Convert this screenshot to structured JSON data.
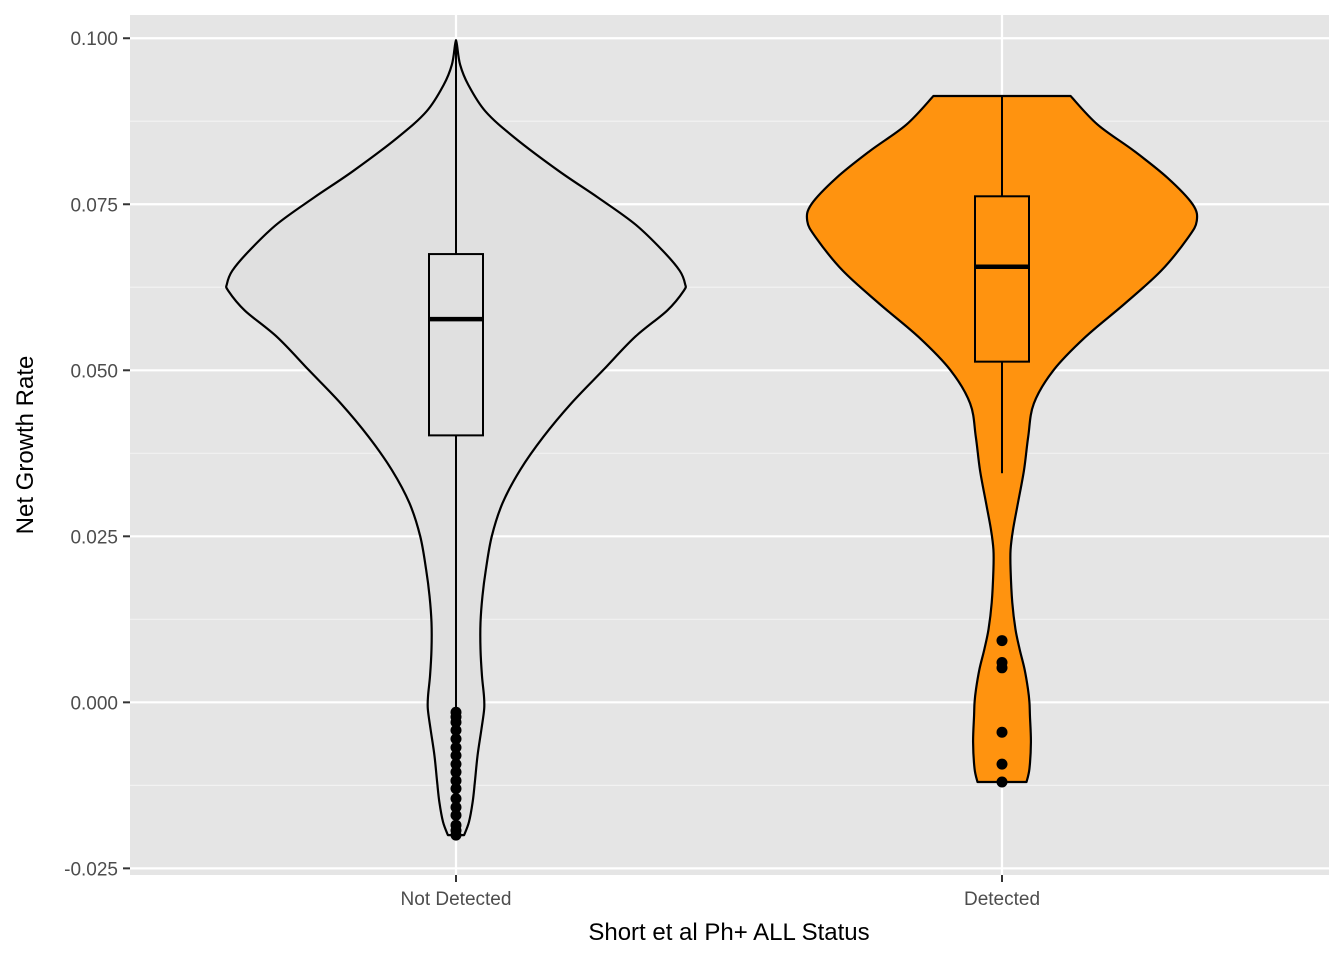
{
  "chart_data": {
    "type": "violin",
    "xlabel": "Short et al Ph+ ALL Status",
    "ylabel": "Net Growth Rate",
    "ylim": [
      -0.026,
      0.1035
    ],
    "y_ticks": [
      -0.025,
      0.0,
      0.025,
      0.05,
      0.075,
      0.1
    ],
    "y_tick_labels": [
      "-0.025",
      "0.000",
      "0.025",
      "0.050",
      "0.075",
      "0.100"
    ],
    "grid": true,
    "categories": [
      "Not Detected",
      "Detected"
    ],
    "series": [
      {
        "category": "Not Detected",
        "fill": "#e0e0e0",
        "density_profile": [
          [
            -0.02,
            0.033
          ],
          [
            -0.018,
            0.053
          ],
          [
            -0.015,
            0.068
          ],
          [
            -0.012,
            0.077
          ],
          [
            -0.008,
            0.088
          ],
          [
            -0.004,
            0.104
          ],
          [
            -0.001,
            0.115
          ],
          [
            0.001,
            0.114
          ],
          [
            0.004,
            0.106
          ],
          [
            0.008,
            0.1
          ],
          [
            0.012,
            0.1
          ],
          [
            0.016,
            0.108
          ],
          [
            0.02,
            0.122
          ],
          [
            0.025,
            0.146
          ],
          [
            0.03,
            0.19
          ],
          [
            0.035,
            0.262
          ],
          [
            0.04,
            0.357
          ],
          [
            0.045,
            0.47
          ],
          [
            0.05,
            0.6
          ],
          [
            0.055,
            0.73
          ],
          [
            0.059,
            0.862
          ],
          [
            0.062,
            0.93
          ],
          [
            0.063,
            0.935
          ],
          [
            0.065,
            0.913
          ],
          [
            0.068,
            0.844
          ],
          [
            0.072,
            0.731
          ],
          [
            0.076,
            0.58
          ],
          [
            0.08,
            0.42
          ],
          [
            0.085,
            0.24
          ],
          [
            0.089,
            0.12
          ],
          [
            0.093,
            0.05
          ],
          [
            0.096,
            0.017
          ],
          [
            0.099,
            0.004
          ],
          [
            0.0997,
            0.0
          ]
        ],
        "box": {
          "min": -0.02,
          "q1": 0.0402,
          "median": 0.0577,
          "q3": 0.0675,
          "max": 0.0997
        },
        "outliers": [
          -0.0015,
          -0.0022,
          -0.003,
          -0.0042,
          -0.0055,
          -0.0068,
          -0.008,
          -0.0093,
          -0.0105,
          -0.0118,
          -0.013,
          -0.0145,
          -0.0158,
          -0.017,
          -0.0185,
          -0.0193,
          -0.02
        ]
      },
      {
        "category": "Detected",
        "fill": "#ff930f",
        "density_profile": [
          [
            -0.012,
            0.1
          ],
          [
            -0.01,
            0.112
          ],
          [
            -0.006,
            0.118
          ],
          [
            -0.002,
            0.114
          ],
          [
            0.0,
            0.112
          ],
          [
            0.002,
            0.106
          ],
          [
            0.005,
            0.092
          ],
          [
            0.008,
            0.072
          ],
          [
            0.011,
            0.055
          ],
          [
            0.015,
            0.042
          ],
          [
            0.02,
            0.035
          ],
          [
            0.023,
            0.035
          ],
          [
            0.026,
            0.045
          ],
          [
            0.03,
            0.065
          ],
          [
            0.035,
            0.09
          ],
          [
            0.04,
            0.107
          ],
          [
            0.045,
            0.13
          ],
          [
            0.05,
            0.21
          ],
          [
            0.055,
            0.34
          ],
          [
            0.06,
            0.5
          ],
          [
            0.065,
            0.65
          ],
          [
            0.07,
            0.76
          ],
          [
            0.0725,
            0.795
          ],
          [
            0.075,
            0.778
          ],
          [
            0.079,
            0.675
          ],
          [
            0.083,
            0.54
          ],
          [
            0.087,
            0.39
          ],
          [
            0.0913,
            0.28
          ]
        ],
        "box": {
          "min": 0.0345,
          "q1": 0.0513,
          "median": 0.0656,
          "q3": 0.0762,
          "max": 0.0913
        },
        "outliers": [
          0.0093,
          0.006,
          0.0052,
          -0.0045,
          -0.0093,
          -0.012
        ]
      }
    ]
  }
}
